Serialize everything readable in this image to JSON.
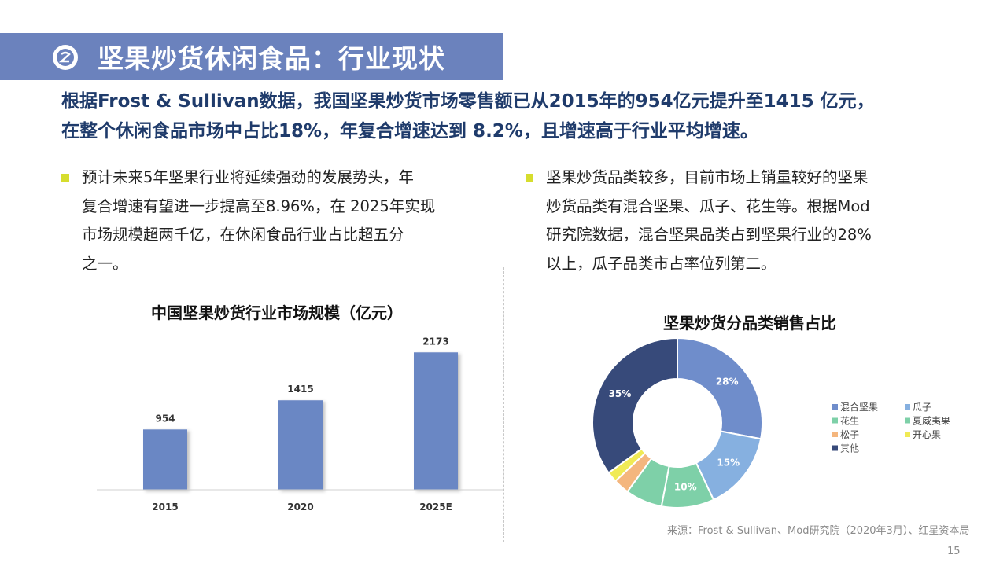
{
  "header": {
    "title": "坚果炒货休闲食品：行业现状"
  },
  "lead": {
    "line1": "根据Frost & Sullivan数据，我国坚果炒货市场零售额已从2015年的954亿元提升至1415 亿元，",
    "line2": "在整个休闲食品市场中占比18%，年复合增速达到 8.2%，且增速高于行业平均增速。"
  },
  "bullet_left": {
    "lines": [
      "预计未来5年坚果行业将延续强劲的发展势头，年",
      "复合增速有望进一步提高至8.96%，在 2025年实现",
      "市场规模超两千亿，在休闲食品行业占比超五分",
      "之一。"
    ]
  },
  "bullet_right": {
    "lines": [
      "坚果炒货品类较多，目前市场上销量较好的坚果",
      "炒货品类有混合坚果、瓜子、花生等。根据Mod",
      "研究院数据，混合坚果品类占到坚果行业的28%",
      "以上，瓜子品类市占率位列第二。"
    ]
  },
  "chart_data": [
    {
      "type": "bar",
      "title": "中国坚果炒货行业市场规模（亿元）",
      "categories": [
        "2015",
        "2020",
        "2025E"
      ],
      "values": [
        954,
        1415,
        2173
      ],
      "xlabel": "",
      "ylabel": "",
      "ylim": [
        0,
        2400
      ],
      "grid": false,
      "bar_color": "#6b87c4"
    },
    {
      "type": "pie",
      "title": "坚果炒货分品类销售占比",
      "legend_position": "right",
      "slices": [
        {
          "label": "混合坚果",
          "value": 28,
          "display": "28%",
          "color": "#6f8dcb"
        },
        {
          "label": "瓜子",
          "value": 15,
          "display": "15%",
          "color": "#86b0e0"
        },
        {
          "label": "花生",
          "value": 10,
          "display": "10%",
          "color": "#7ed0a8"
        },
        {
          "label": "夏威夷果",
          "value": 7,
          "display": "",
          "color": "#7ed0a8"
        },
        {
          "label": "松子",
          "value": 3,
          "display": "",
          "color": "#f4b67e"
        },
        {
          "label": "开心果",
          "value": 2,
          "display": "",
          "color": "#f0ea55"
        },
        {
          "label": "其他",
          "value": 35,
          "display": "35%",
          "color": "#374a7a"
        }
      ]
    }
  ],
  "source": "来源：Frost & Sullivan、Mod研究院（2020年3月）、红星资本局",
  "page_number": "15"
}
